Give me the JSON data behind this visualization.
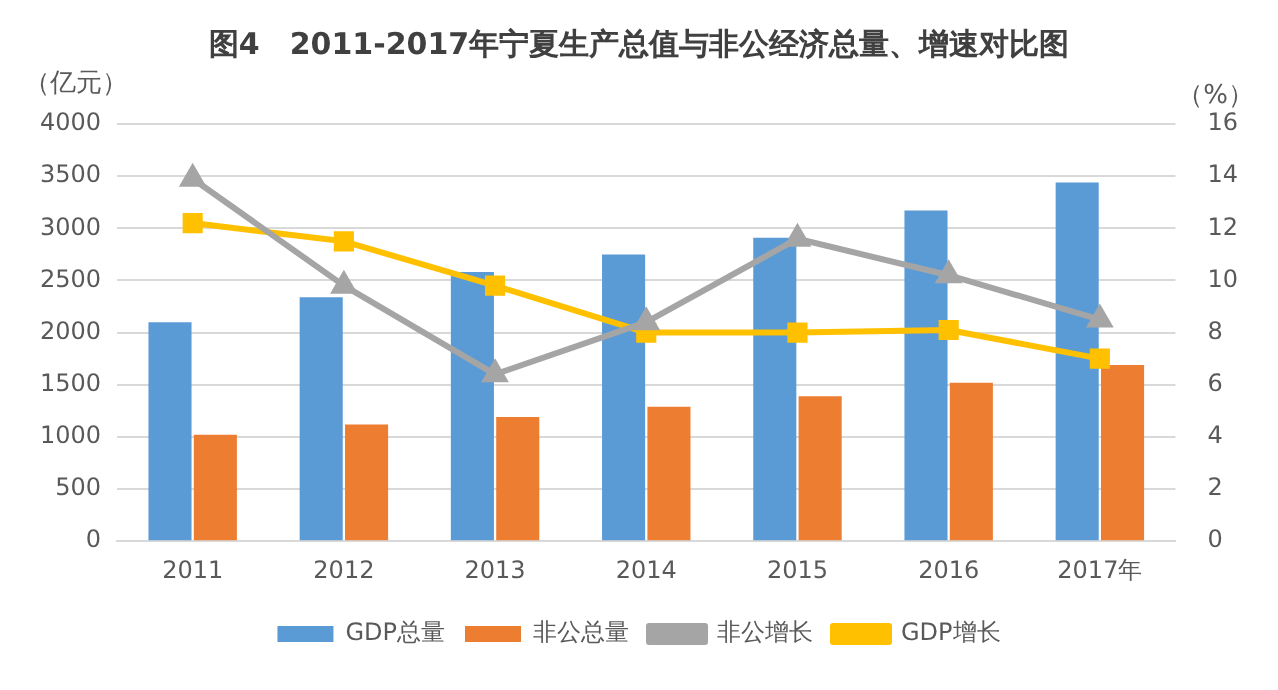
{
  "chart_data": {
    "type": "bar",
    "title": "图4　2011-2017年宁夏生产总值与非公经济总量、增速对比图",
    "ylabel": "（亿元）",
    "y2label": "（%）",
    "categories": [
      "2011",
      "2012",
      "2013",
      "2014",
      "2015",
      "2016",
      "2017年"
    ],
    "series": [
      {
        "name": "GDP总量",
        "color": "#5b9bd5",
        "values": [
          2100,
          2340,
          2580,
          2750,
          2910,
          3170,
          3440
        ]
      },
      {
        "name": "非公总量",
        "color": "#ed7d31",
        "values": [
          1020,
          1120,
          1190,
          1290,
          1390,
          1520,
          1690
        ]
      },
      {
        "name": "非公增长",
        "type": "line",
        "axis": "y2",
        "marker": "triangle",
        "color": "#a5a5a5",
        "values": [
          13.9,
          9.8,
          6.4,
          8.4,
          11.6,
          10.2,
          8.5
        ]
      },
      {
        "name": "GDP增长",
        "type": "line",
        "axis": "y2",
        "marker": "square",
        "color": "#ffc000",
        "values": [
          12.2,
          11.5,
          9.8,
          8.0,
          8.0,
          8.1,
          7.0
        ]
      }
    ],
    "ylim": [
      0,
      4000
    ],
    "yticks": [
      0,
      500,
      1000,
      1500,
      2000,
      2500,
      3000,
      3500,
      4000
    ],
    "y2lim": [
      0,
      16
    ],
    "y2ticks": [
      0,
      2,
      4,
      6,
      8,
      10,
      12,
      14,
      16
    ],
    "grid": "y",
    "legend": "bottom"
  }
}
